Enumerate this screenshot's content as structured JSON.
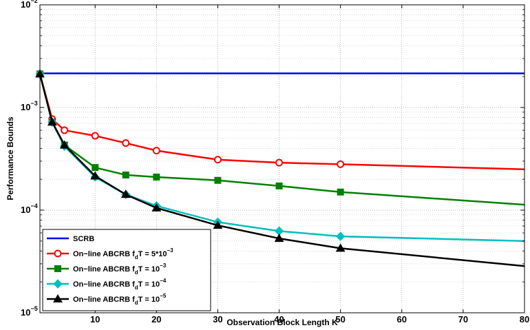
{
  "chart_data": {
    "type": "line",
    "xlabel": "Observation Block Length K",
    "ylabel": "Performance Bounds",
    "xlim": [
      1,
      80
    ],
    "ylim": [
      1e-05,
      0.01
    ],
    "yscale": "log",
    "grid": true,
    "legend_position": "bottom-left",
    "x_ticks": [
      "10",
      "20",
      "30",
      "40",
      "50",
      "60",
      "70",
      "80"
    ],
    "y_ticks": [
      {
        "value": 1e-05,
        "base": "10",
        "exp": "−5"
      },
      {
        "value": 0.0001,
        "base": "10",
        "exp": "−4"
      },
      {
        "value": 0.001,
        "base": "10",
        "exp": "−3"
      },
      {
        "value": 0.01,
        "base": "10",
        "exp": "−2"
      }
    ],
    "series": [
      {
        "name": "SCRB",
        "legend": {
          "prefix": "SCRB"
        },
        "color": "#0000ee",
        "marker": "none",
        "x": [
          1,
          80
        ],
        "y": [
          0.00215,
          0.00215
        ]
      },
      {
        "name": "On−line ABCRB fdT = 5*10−3",
        "legend": {
          "prefix": "On−line ABCRB f",
          "sub": "d",
          "mid": "T = 5*10",
          "sup": "−3"
        },
        "color": "#ff0000",
        "marker": "circle",
        "x": [
          1,
          3,
          5,
          10,
          15,
          20,
          30,
          40,
          50,
          80
        ],
        "y": [
          0.00212,
          0.00077,
          0.0006,
          0.00053,
          0.00045,
          0.00038,
          0.00031,
          0.00029,
          0.00028,
          0.00025
        ],
        "marker_count": 9
      },
      {
        "name": "On−line ABCRB fdT = 10−3",
        "legend": {
          "prefix": "On−line ABCRB f",
          "sub": "d",
          "mid": "T = 10",
          "sup": "−3"
        },
        "color": "#008000",
        "marker": "square",
        "x": [
          1,
          3,
          5,
          10,
          15,
          20,
          30,
          40,
          50,
          80
        ],
        "y": [
          0.00212,
          0.00072,
          0.00043,
          0.00026,
          0.00022,
          0.00021,
          0.000195,
          0.000172,
          0.00015,
          0.000113
        ],
        "marker_count": 9
      },
      {
        "name": "On−line ABCRB fdT = 10−4",
        "legend": {
          "prefix": "On−line ABCRB f",
          "sub": "d",
          "mid": "T = 10",
          "sup": "−4"
        },
        "color": "#00bfbf",
        "marker": "diamond",
        "x": [
          1,
          3,
          5,
          10,
          15,
          20,
          30,
          40,
          50,
          80
        ],
        "y": [
          0.00212,
          0.00072,
          0.00042,
          0.00021,
          0.000142,
          0.00011,
          7.65e-05,
          6.25e-05,
          5.55e-05,
          5e-05
        ],
        "marker_count": 9
      },
      {
        "name": "On−line ABCRB fdT = 10−5",
        "legend": {
          "prefix": "On−line ABCRB f",
          "sub": "d",
          "mid": "T = 10",
          "sup": "−5"
        },
        "color": "#000000",
        "marker": "triangle",
        "x": [
          1,
          3,
          5,
          10,
          15,
          20,
          30,
          40,
          50,
          80
        ],
        "y": [
          0.00212,
          0.00072,
          0.00043,
          0.000215,
          0.000142,
          0.000105,
          7.1e-05,
          5.3e-05,
          4.25e-05,
          2.85e-05
        ],
        "marker_count": 9
      }
    ]
  }
}
